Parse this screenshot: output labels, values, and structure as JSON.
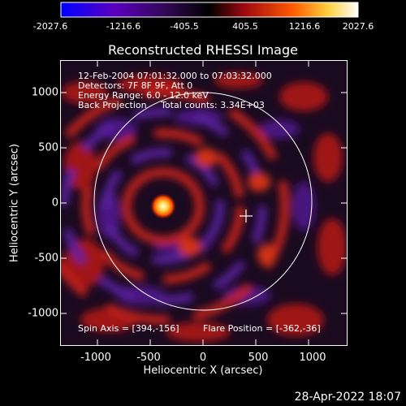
{
  "colorbar": {
    "ticks": [
      "-2027.6",
      "-1216.6",
      "-405.5",
      "405.5",
      "1216.6",
      "2027.6"
    ],
    "colors": [
      "#0000ff",
      "#6a00b0",
      "#3a0a60",
      "#000000",
      "#b01010",
      "#ff6000",
      "#ffe040",
      "#ffffff"
    ]
  },
  "plot": {
    "title": "Reconstructed RHESSI Image",
    "info_lines": [
      "12-Feb-2004 07:01:32.000 to 07:03:32.000",
      "Detectors: 7F 8F 9F, Att 0",
      "Energy Range: 6.0 - 12.0 keV",
      "Back Projection     Total counts: 3.34E+03"
    ],
    "spin_axis": "Spin Axis = [394,-156]",
    "flare_position": "Flare Position = [-362,-36]",
    "x_ticks": [
      "-1000",
      "-500",
      "0",
      "500",
      "1000"
    ],
    "y_ticks": [
      "1000",
      "500",
      "0",
      "-500",
      "-1000"
    ],
    "x_label": "Heliocentric X (arcsec)",
    "y_label": "Heliocentric Y (arcsec)"
  },
  "footer": {
    "date": "28-Apr-2022 18:07"
  }
}
